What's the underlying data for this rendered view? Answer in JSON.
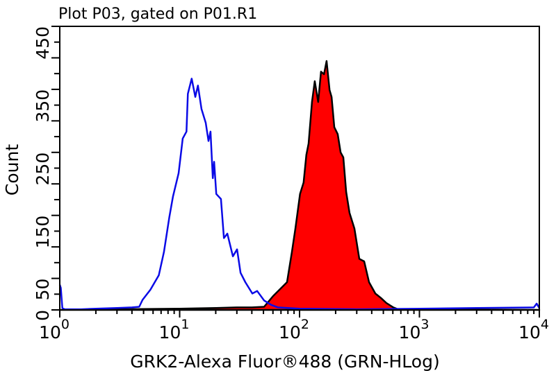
{
  "chart_data": {
    "type": "area",
    "title": "Plot P03, gated on P01.R1",
    "xlabel": "GRK2-Alexa Fluor®488 (GRN-HLog)",
    "ylabel": "Count",
    "x_scale": "log",
    "xlim": [
      1,
      10000
    ],
    "ylim": [
      0,
      450
    ],
    "x_ticks": [
      {
        "base": "10",
        "exp": "0"
      },
      {
        "base": "10",
        "exp": "1"
      },
      {
        "base": "10",
        "exp": "2"
      },
      {
        "base": "10",
        "exp": "3"
      },
      {
        "base": "10",
        "exp": "4"
      }
    ],
    "y_ticks": [
      "0",
      "50",
      "150",
      "250",
      "350",
      "450"
    ],
    "y_tick_values": [
      0,
      50,
      150,
      250,
      350,
      450
    ],
    "grid": false,
    "series": [
      {
        "style": "line",
        "color": "#0a0ae6",
        "x": [
          1.0,
          1.02,
          1.05,
          1.1,
          1.5,
          2,
          3,
          4,
          4.6,
          4.9,
          5.7,
          6.7,
          7.4,
          8.2,
          8.8,
          9.8,
          10.6,
          11.4,
          11.7,
          12.6,
          13.5,
          14.2,
          15.2,
          16.5,
          17.4,
          18.1,
          18.9,
          19.4,
          20.2,
          22.1,
          23.4,
          25.0,
          27.8,
          30.1,
          32.2,
          35.3,
          40.4,
          44.3,
          50.6,
          57.9,
          66.1,
          100,
          300,
          1000,
          3000,
          9000,
          9500,
          10000
        ],
        "y": [
          40,
          35,
          3,
          1,
          1,
          2,
          3,
          4,
          5,
          16,
          32,
          55,
          92,
          147,
          180,
          217,
          272,
          283,
          343,
          367,
          338,
          356,
          319,
          297,
          268,
          283,
          209,
          235,
          184,
          176,
          114,
          121,
          85,
          96,
          59,
          44,
          26,
          30,
          15,
          8,
          4,
          2,
          1,
          2,
          3,
          4,
          10,
          3
        ]
      },
      {
        "style": "filled",
        "color": "#ff0000",
        "outline": "#000000",
        "x": [
          1,
          3,
          10,
          20,
          30,
          40,
          50.6,
          60.2,
          68.8,
          78.6,
          86.4,
          92.3,
          101,
          108,
          114,
          119,
          127,
          134,
          143,
          151,
          160,
          168,
          178,
          185,
          195,
          208,
          220,
          232,
          245,
          261,
          287,
          315,
          346,
          380,
          429,
          477,
          530,
          606,
          684,
          1000,
          10000
        ],
        "y": [
          0,
          1,
          2,
          3,
          4,
          4,
          5,
          22,
          33,
          44,
          92,
          129,
          184,
          202,
          246,
          264,
          330,
          363,
          330,
          378,
          374,
          395,
          349,
          338,
          290,
          279,
          250,
          242,
          187,
          154,
          129,
          81,
          77,
          44,
          26,
          19,
          11,
          4,
          0,
          1,
          0
        ]
      }
    ]
  }
}
